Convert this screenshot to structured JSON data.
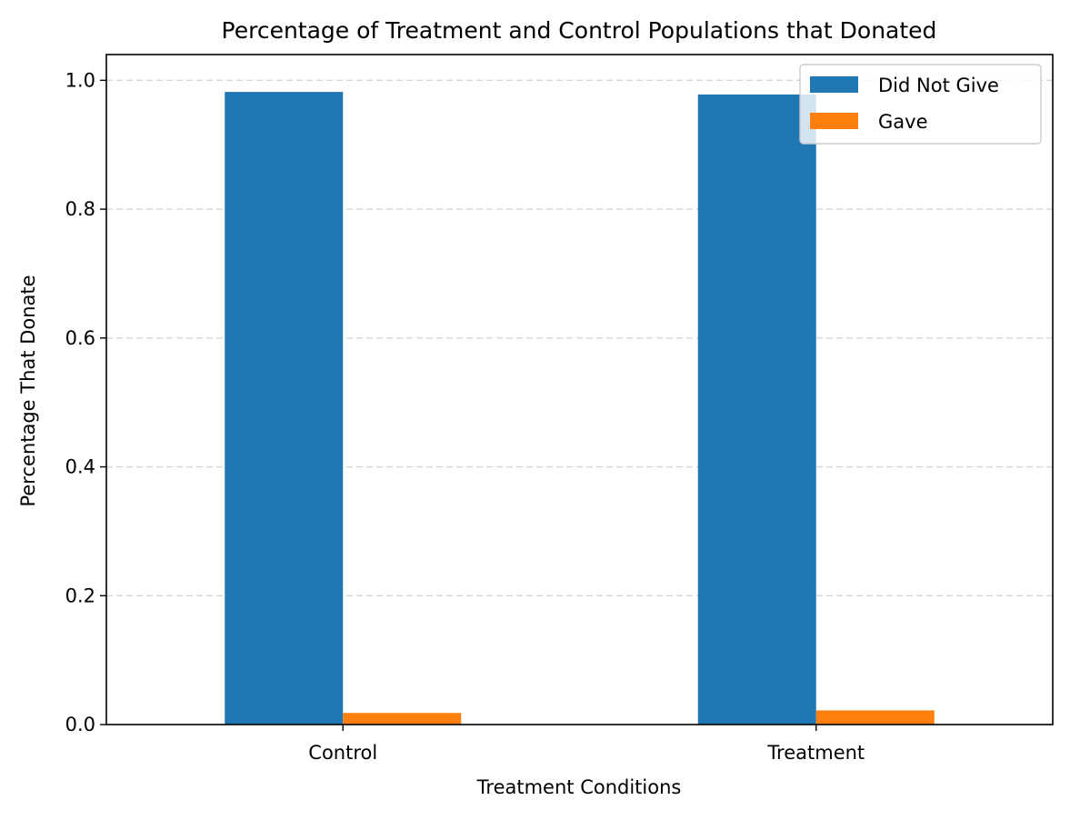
{
  "chart_data": {
    "type": "bar",
    "title": "Percentage of Treatment and Control Populations that Donated",
    "xlabel": "Treatment Conditions",
    "ylabel": "Percentage That Donate",
    "categories": [
      "Control",
      "Treatment"
    ],
    "series": [
      {
        "name": "Did Not Give",
        "values": [
          0.982,
          0.978
        ],
        "color": "#1f77b4"
      },
      {
        "name": "Gave",
        "values": [
          0.018,
          0.022
        ],
        "color": "#ff7f0e"
      }
    ],
    "ylim": [
      0,
      1.0
    ],
    "yticks": [
      0.0,
      0.2,
      0.4,
      0.6,
      0.8,
      1.0
    ],
    "ytick_labels": [
      "0.0",
      "0.2",
      "0.4",
      "0.6",
      "0.8",
      "1.0"
    ],
    "grid": {
      "axis": "y",
      "style": "dashed"
    },
    "legend_position": "top-right"
  }
}
